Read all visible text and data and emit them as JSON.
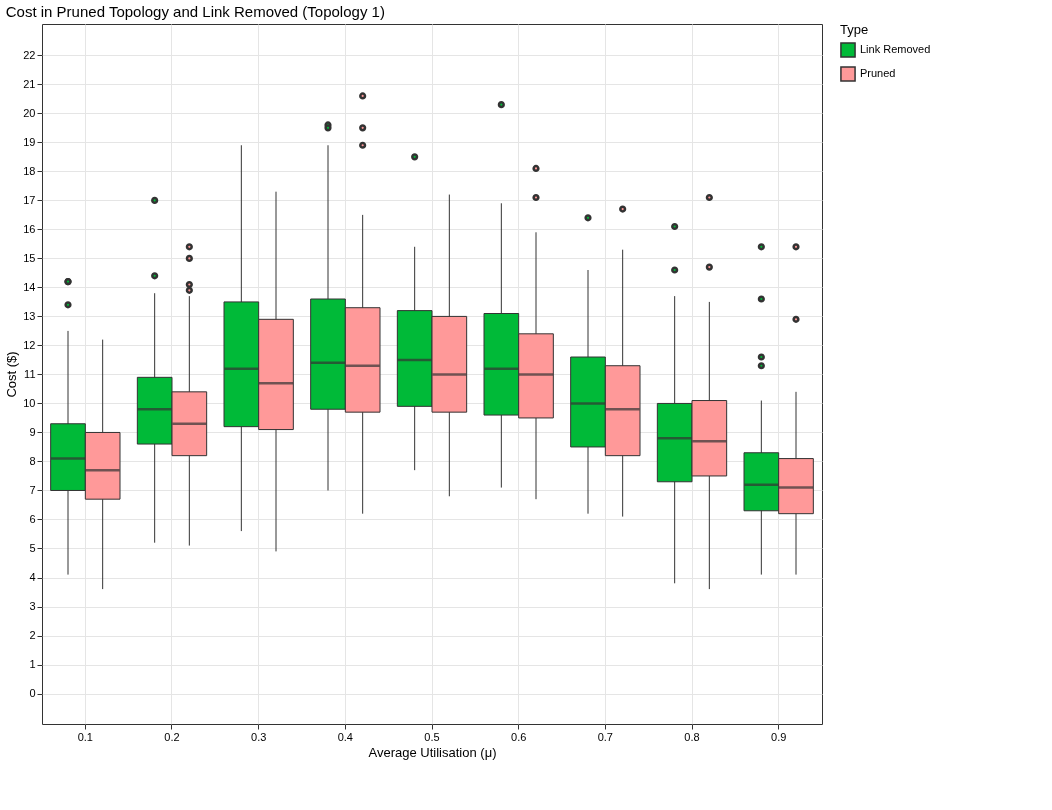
{
  "chart_data": {
    "type": "box",
    "title": "Cost in Pruned Topology and Link Removed (Topology 1)",
    "xlabel": "Average Utilisation (μ)",
    "ylabel": "Cost ($)",
    "legend_title": "Type",
    "legend": "right",
    "grid": true,
    "categories": [
      "0.1",
      "0.2",
      "0.3",
      "0.4",
      "0.5",
      "0.6",
      "0.7",
      "0.8",
      "0.9"
    ],
    "ylim": [
      -1.05,
      23.08
    ],
    "yticks": [
      0,
      1,
      2,
      3,
      4,
      5,
      6,
      7,
      8,
      9,
      10,
      11,
      12,
      13,
      14,
      15,
      16,
      17,
      18,
      19,
      20,
      21,
      22
    ],
    "series": [
      {
        "name": "Link Removed",
        "color": "#00ba38",
        "boxes": [
          {
            "low": 4.1,
            "q1": 7.0,
            "median": 8.1,
            "q3": 9.3,
            "high": 12.5,
            "outliers": [
              14.2,
              14.2,
              13.4
            ]
          },
          {
            "low": 5.2,
            "q1": 8.6,
            "median": 9.8,
            "q3": 10.9,
            "high": 13.8,
            "outliers": [
              17.0,
              14.4
            ]
          },
          {
            "low": 5.6,
            "q1": 9.2,
            "median": 11.2,
            "q3": 13.5,
            "high": 18.9
          },
          {
            "low": 7.0,
            "q1": 9.8,
            "median": 11.4,
            "q3": 13.6,
            "high": 18.9,
            "outliers": [
              19.6,
              19.5
            ]
          },
          {
            "low": 7.7,
            "q1": 9.9,
            "median": 11.5,
            "q3": 13.2,
            "high": 15.4,
            "outliers": [
              18.5
            ]
          },
          {
            "low": 7.1,
            "q1": 9.6,
            "median": 11.2,
            "q3": 13.1,
            "high": 16.9,
            "outliers": [
              20.3
            ]
          },
          {
            "low": 6.2,
            "q1": 8.5,
            "median": 10.0,
            "q3": 11.6,
            "high": 14.6,
            "outliers": [
              16.4
            ]
          },
          {
            "low": 3.8,
            "q1": 7.3,
            "median": 8.8,
            "q3": 10.0,
            "high": 13.7,
            "outliers": [
              16.1,
              14.6
            ]
          },
          {
            "low": 4.1,
            "q1": 6.3,
            "median": 7.2,
            "q3": 8.3,
            "high": 10.1,
            "outliers": [
              15.4,
              13.6,
              11.6,
              11.3
            ]
          }
        ]
      },
      {
        "name": "Pruned",
        "color": "#ff9999",
        "boxes": [
          {
            "low": 3.6,
            "q1": 6.7,
            "median": 7.7,
            "q3": 9.0,
            "high": 12.2
          },
          {
            "low": 5.1,
            "q1": 8.2,
            "median": 9.3,
            "q3": 10.4,
            "high": 13.7,
            "outliers": [
              15.4,
              15.0,
              14.1,
              13.9
            ]
          },
          {
            "low": 4.9,
            "q1": 9.1,
            "median": 10.7,
            "q3": 12.9,
            "high": 17.3
          },
          {
            "low": 6.2,
            "q1": 9.7,
            "median": 11.3,
            "q3": 13.3,
            "high": 16.5,
            "outliers": [
              20.6,
              19.5,
              18.9
            ]
          },
          {
            "low": 6.8,
            "q1": 9.7,
            "median": 11.0,
            "q3": 13.0,
            "high": 17.2
          },
          {
            "low": 6.7,
            "q1": 9.5,
            "median": 11.0,
            "q3": 12.4,
            "high": 15.9,
            "outliers": [
              18.1,
              17.1
            ]
          },
          {
            "low": 6.1,
            "q1": 8.2,
            "median": 9.8,
            "q3": 11.3,
            "high": 15.3,
            "outliers": [
              16.7
            ]
          },
          {
            "low": 3.6,
            "q1": 7.5,
            "median": 8.7,
            "q3": 10.1,
            "high": 13.5,
            "outliers": [
              17.1,
              14.7
            ]
          },
          {
            "low": 4.1,
            "q1": 6.2,
            "median": 7.1,
            "q3": 8.1,
            "high": 10.4,
            "outliers": [
              15.4,
              12.9
            ]
          }
        ]
      }
    ]
  }
}
